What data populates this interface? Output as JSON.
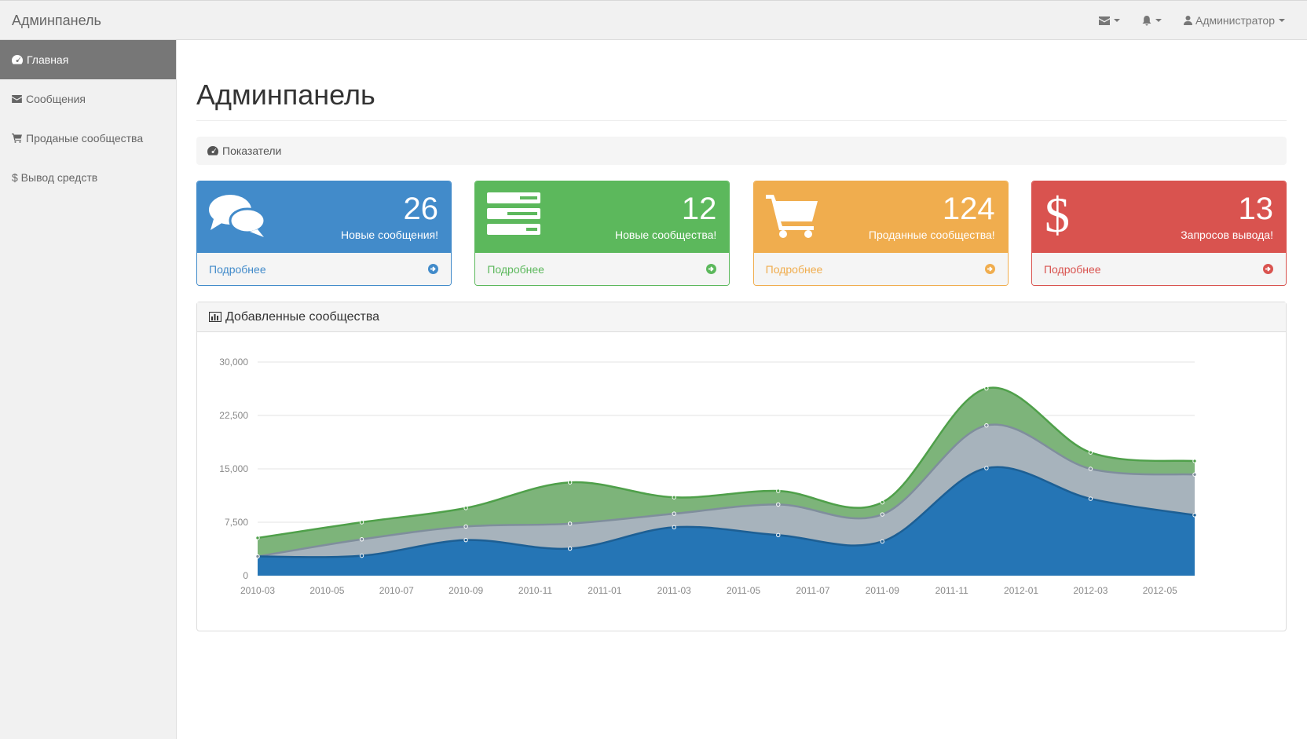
{
  "navbar": {
    "brand": "Админпанель",
    "user_label": "Администратор"
  },
  "sidebar": {
    "items": [
      {
        "label": "Главная",
        "icon": "dashboard-icon",
        "active": true
      },
      {
        "label": "Сообщения",
        "icon": "envelope-icon"
      },
      {
        "label": "Проданые сообщества",
        "icon": "cart-icon"
      },
      {
        "label": "$ Вывод средств",
        "icon": "dollar-icon"
      }
    ]
  },
  "page": {
    "title": "Админпанель",
    "breadcrumb": "Показатели"
  },
  "panels": [
    {
      "number": "26",
      "text": "Новые сообщения!",
      "link": "Подробнее",
      "color": "#428bca",
      "icon": "comments-icon"
    },
    {
      "number": "12",
      "text": "Новые сообщества!",
      "link": "Подробнее",
      "color": "#5cb85c",
      "icon": "tasks-icon"
    },
    {
      "number": "124",
      "text": "Проданные сообщества!",
      "link": "Подробнее",
      "color": "#f0ad4e",
      "icon": "shopping-cart-icon"
    },
    {
      "number": "13",
      "text": "Запросов вывода!",
      "link": "Подробнее",
      "color": "#d9534f",
      "icon": "dollar-icon"
    }
  ],
  "chart_panel": {
    "title": "Добавленные сообщества"
  },
  "chart_data": {
    "type": "area",
    "stacked": true,
    "title": "Добавленные сообщества",
    "x": [
      "2010-03",
      "2010-06",
      "2010-09",
      "2010-12",
      "2011-03",
      "2011-06",
      "2011-09",
      "2011-12",
      "2012-03",
      "2012-06"
    ],
    "x_tick_labels": [
      "2010-03",
      "2010-05",
      "2010-07",
      "2010-09",
      "2010-11",
      "2011-01",
      "2011-03",
      "2011-05",
      "2011-07",
      "2011-09",
      "2011-11",
      "2012-01",
      "2012-03",
      "2012-05"
    ],
    "ylim": [
      0,
      30000
    ],
    "y_ticks": [
      "0",
      "7,500",
      "15,000",
      "22,500",
      "30,000"
    ],
    "grid": true,
    "series": [
      {
        "color": "#2575b5",
        "values": [
          2700,
          2800,
          5000,
          3800,
          6800,
          5700,
          4800,
          15100,
          10800,
          8500
        ]
      },
      {
        "color": "#a7b3bc",
        "values": [
          0,
          2300,
          1900,
          3500,
          1900,
          4300,
          3800,
          6000,
          4200,
          5700
        ]
      },
      {
        "color": "#7db47a",
        "values": [
          2600,
          2400,
          2600,
          5800,
          2300,
          1900,
          1700,
          5200,
          2300,
          1900
        ]
      }
    ]
  }
}
